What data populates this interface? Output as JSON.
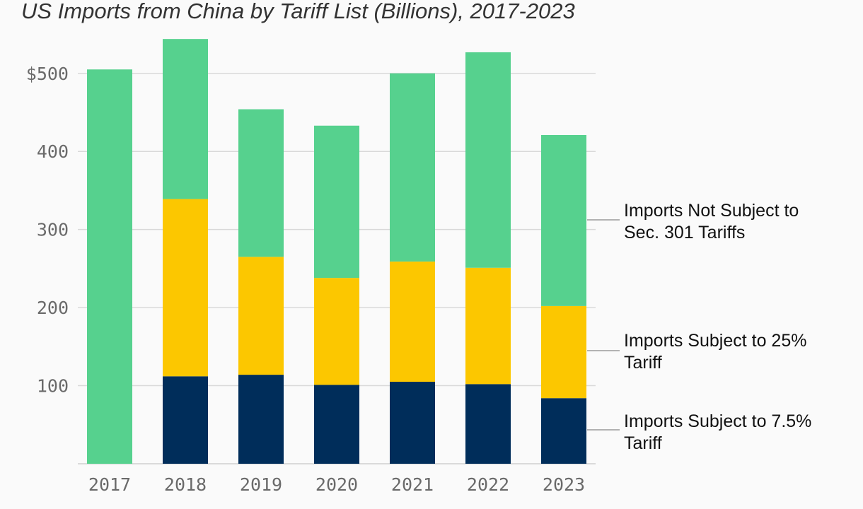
{
  "chart_data": {
    "type": "bar",
    "stacked": true,
    "title": "US Imports from China by Tariff List (Billions), 2017-2023",
    "categories": [
      "2017",
      "2018",
      "2019",
      "2020",
      "2021",
      "2022",
      "2023"
    ],
    "series": [
      {
        "name": "Imports Subject to 7.5% Tariff",
        "color": "#002d5a",
        "values": [
          0,
          112,
          114,
          101,
          105,
          102,
          84
        ]
      },
      {
        "name": "Imports Subject to 25% Tariff",
        "color": "#fcc700",
        "values": [
          0,
          227,
          151,
          137,
          154,
          149,
          118
        ]
      },
      {
        "name": "Imports Not Subject to Sec. 301 Tariffs",
        "color": "#56d18e",
        "values": [
          505,
          205,
          189,
          195,
          241,
          276,
          219
        ]
      }
    ],
    "yticks": [
      "$500",
      "400",
      "300",
      "200",
      "100"
    ],
    "ytick_values": [
      500,
      400,
      300,
      200,
      100
    ],
    "ylim": [
      0,
      545
    ],
    "grid": true,
    "legend_position": "right, aligned to last bar",
    "legend_labels": {
      "not_subject": [
        "Imports Not Subject to",
        "Sec. 301 Tariffs"
      ],
      "tariff_25": [
        "Imports Subject to 25%",
        "Tariff"
      ],
      "tariff_75": [
        "Imports Subject to 7.5%",
        "Tariff"
      ]
    }
  }
}
